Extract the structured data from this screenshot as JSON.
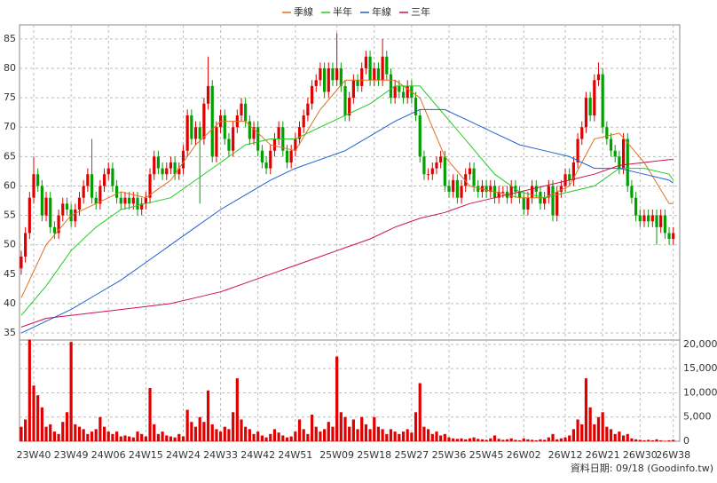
{
  "chart_data": {
    "type": "candlestick",
    "categories": [
      null,
      null,
      null,
      "23W40",
      null,
      null,
      null,
      null,
      null,
      null,
      null,
      null,
      "23W49",
      null,
      null,
      null,
      null,
      null,
      null,
      null,
      null,
      "24W06",
      null,
      null,
      null,
      null,
      null,
      null,
      null,
      null,
      "24W15",
      null,
      null,
      null,
      null,
      null,
      null,
      null,
      null,
      "24W24",
      null,
      null,
      null,
      null,
      null,
      null,
      null,
      null,
      "24W33",
      null,
      null,
      null,
      null,
      null,
      null,
      null,
      null,
      "24W42",
      null,
      null,
      null,
      null,
      null,
      null,
      null,
      null,
      "24W51",
      null,
      null,
      null,
      null,
      null,
      null,
      null,
      null,
      null,
      "25W09",
      null,
      null,
      null,
      null,
      null,
      null,
      null,
      null,
      "25W18",
      null,
      null,
      null,
      null,
      null,
      null,
      null,
      null,
      "25W27",
      null,
      null,
      null,
      null,
      null,
      null,
      null,
      null,
      "25W36",
      null,
      null,
      null,
      null,
      null,
      null,
      null,
      null,
      "25W45",
      null,
      null,
      null,
      null,
      null,
      null,
      null,
      null,
      "26W02",
      null,
      null,
      null,
      null,
      null,
      null,
      null,
      null,
      null,
      "26W12",
      null,
      null,
      null,
      null,
      null,
      null,
      null,
      null,
      "26W21",
      null,
      null,
      null,
      null,
      null,
      null,
      null,
      null,
      "26W30",
      null,
      null,
      null,
      null,
      null,
      null,
      null,
      "26W38"
    ],
    "open": [
      46,
      48,
      52,
      58,
      62,
      60,
      55,
      58,
      53,
      52,
      55,
      57,
      56,
      54,
      56,
      58,
      60,
      62,
      58,
      57,
      60,
      62,
      63,
      60,
      58,
      57,
      58,
      57,
      58,
      56,
      57,
      58,
      62,
      65,
      63,
      62,
      63,
      64,
      62,
      63,
      66,
      72,
      68,
      70,
      68,
      74,
      77,
      65,
      70,
      72,
      68,
      66,
      70,
      72,
      74,
      71,
      68,
      70,
      66,
      64,
      63,
      66,
      68,
      70,
      66,
      64,
      66,
      68,
      70,
      72,
      74,
      77,
      78,
      80,
      76,
      80,
      78,
      80,
      77,
      72,
      75,
      78,
      77,
      80,
      82,
      78,
      80,
      78,
      82,
      79,
      75,
      77,
      76,
      75,
      77,
      75,
      72,
      65,
      62,
      62,
      63,
      64,
      65,
      60,
      59,
      61,
      58,
      60,
      62,
      63,
      60,
      59,
      60,
      59,
      60,
      58,
      59,
      59,
      58,
      60,
      59,
      58,
      56,
      58,
      60,
      59,
      57,
      58,
      60,
      55,
      59,
      60,
      62,
      61,
      64,
      68,
      70,
      75,
      72,
      78,
      79,
      70,
      68,
      66,
      65,
      63,
      68,
      60,
      58,
      55,
      54,
      55,
      54,
      55,
      53,
      55,
      52,
      51
    ],
    "high": [
      49,
      53,
      59,
      65,
      63,
      61,
      59,
      59,
      54,
      56,
      58,
      58,
      57,
      57,
      59,
      61,
      63,
      68,
      59,
      61,
      63,
      64,
      64,
      61,
      59,
      59,
      59,
      59,
      59,
      58,
      59,
      63,
      66,
      66,
      64,
      64,
      65,
      65,
      64,
      67,
      73,
      73,
      71,
      71,
      75,
      82,
      78,
      71,
      73,
      73,
      69,
      71,
      73,
      75,
      75,
      72,
      71,
      71,
      67,
      65,
      67,
      69,
      71,
      71,
      67,
      67,
      69,
      71,
      73,
      75,
      78,
      79,
      81,
      81,
      81,
      81,
      86,
      81,
      78,
      76,
      79,
      79,
      81,
      83,
      83,
      81,
      81,
      85,
      83,
      80,
      78,
      78,
      77,
      78,
      78,
      76,
      73,
      66,
      63,
      64,
      65,
      66,
      66,
      61,
      62,
      62,
      61,
      63,
      64,
      64,
      61,
      61,
      61,
      61,
      61,
      60,
      60,
      60,
      61,
      61,
      60,
      59,
      59,
      61,
      61,
      60,
      59,
      61,
      61,
      60,
      61,
      63,
      63,
      65,
      69,
      71,
      76,
      76,
      79,
      81,
      80,
      71,
      69,
      67,
      66,
      69,
      69,
      61,
      59,
      56,
      56,
      56,
      56,
      56,
      56,
      56,
      53,
      53
    ],
    "low": [
      45,
      47,
      51,
      57,
      59,
      54,
      54,
      52,
      51,
      51,
      54,
      55,
      53,
      53,
      55,
      57,
      59,
      57,
      56,
      56,
      59,
      61,
      59,
      57,
      56,
      56,
      56,
      56,
      55,
      55,
      56,
      57,
      61,
      62,
      61,
      61,
      62,
      61,
      61,
      62,
      65,
      67,
      67,
      57,
      67,
      73,
      64,
      64,
      69,
      67,
      65,
      65,
      69,
      71,
      70,
      67,
      67,
      65,
      63,
      62,
      62,
      65,
      67,
      65,
      63,
      63,
      65,
      67,
      69,
      71,
      73,
      76,
      77,
      75,
      75,
      77,
      77,
      76,
      71,
      71,
      74,
      76,
      76,
      79,
      77,
      77,
      77,
      77,
      78,
      74,
      74,
      75,
      74,
      74,
      74,
      71,
      64,
      61,
      61,
      61,
      62,
      63,
      59,
      58,
      58,
      57,
      57,
      59,
      61,
      59,
      58,
      58,
      58,
      58,
      57,
      57,
      58,
      57,
      57,
      58,
      57,
      55,
      55,
      57,
      58,
      56,
      56,
      57,
      54,
      54,
      58,
      59,
      60,
      60,
      63,
      67,
      69,
      71,
      71,
      77,
      69,
      67,
      65,
      64,
      62,
      62,
      59,
      57,
      54,
      53,
      53,
      53,
      53,
      50,
      52,
      51,
      50,
      50
    ],
    "close": [
      48,
      52,
      58,
      62,
      60,
      55,
      58,
      53,
      52,
      55,
      57,
      56,
      54,
      56,
      58,
      60,
      62,
      58,
      57,
      60,
      62,
      63,
      60,
      58,
      57,
      58,
      57,
      58,
      56,
      57,
      58,
      62,
      65,
      63,
      62,
      63,
      64,
      62,
      63,
      66,
      72,
      68,
      70,
      68,
      74,
      77,
      65,
      70,
      72,
      68,
      66,
      70,
      72,
      74,
      71,
      68,
      70,
      66,
      64,
      63,
      66,
      68,
      70,
      66,
      64,
      66,
      68,
      70,
      72,
      74,
      77,
      78,
      80,
      76,
      80,
      78,
      80,
      77,
      72,
      75,
      78,
      77,
      80,
      82,
      78,
      80,
      78,
      82,
      79,
      75,
      77,
      76,
      75,
      77,
      75,
      72,
      65,
      62,
      62,
      63,
      64,
      65,
      60,
      59,
      61,
      58,
      60,
      62,
      63,
      60,
      59,
      60,
      59,
      60,
      58,
      59,
      59,
      58,
      60,
      59,
      58,
      56,
      58,
      60,
      59,
      57,
      58,
      60,
      55,
      59,
      60,
      62,
      61,
      64,
      68,
      70,
      75,
      72,
      78,
      79,
      70,
      68,
      66,
      65,
      63,
      68,
      60,
      58,
      55,
      54,
      55,
      54,
      55,
      53,
      55,
      52,
      51,
      52
    ],
    "volume": [
      3000,
      4500,
      21000,
      11500,
      9500,
      7000,
      3000,
      3500,
      2000,
      1500,
      4000,
      6000,
      20500,
      3500,
      3000,
      2500,
      1500,
      2000,
      2500,
      5000,
      3000,
      2000,
      1500,
      2000,
      1000,
      1200,
      1000,
      800,
      2000,
      1500,
      1000,
      11000,
      3500,
      1500,
      2000,
      1200,
      1000,
      800,
      1500,
      1000,
      6500,
      4000,
      3000,
      5000,
      4000,
      10500,
      3500,
      2500,
      2000,
      3000,
      2500,
      6000,
      13000,
      4500,
      3000,
      2500,
      1500,
      2000,
      1200,
      800,
      1500,
      2500,
      1800,
      1200,
      800,
      1000,
      2000,
      4500,
      2500,
      1500,
      5500,
      3000,
      2000,
      2500,
      4000,
      3000,
      17500,
      6000,
      5000,
      3000,
      4500,
      2500,
      5000,
      3500,
      2500,
      5000,
      3000,
      2500,
      1500,
      2500,
      2000,
      1500,
      2000,
      2500,
      1800,
      6000,
      12000,
      3000,
      2500,
      1500,
      2000,
      1200,
      1500,
      800,
      600,
      500,
      600,
      400,
      600,
      800,
      500,
      400,
      300,
      600,
      1200,
      500,
      300,
      400,
      600,
      300,
      200,
      600,
      400,
      300,
      200,
      400,
      300,
      800,
      1500,
      400,
      600,
      800,
      1200,
      2500,
      4500,
      3500,
      13000,
      7000,
      3500,
      5000,
      6000,
      3000,
      2500,
      1500,
      2000,
      1200,
      1500,
      600,
      400,
      300,
      200,
      300,
      200,
      400,
      200,
      100,
      200,
      300
    ],
    "up_color": "#e00000",
    "down_color": "#00a000",
    "volume_color": "#e00000",
    "lines": [
      {
        "name": "季線",
        "color": "#e07020",
        "x": [
          0,
          6,
          12,
          18,
          24,
          30,
          36,
          42,
          48,
          54,
          60,
          66,
          72,
          78,
          84,
          90,
          96,
          102,
          108,
          114,
          120,
          126,
          132,
          138,
          144,
          150,
          156,
          157
        ],
        "values": [
          41,
          50,
          55,
          57,
          59,
          58,
          61,
          67,
          71,
          71,
          67,
          66,
          73,
          78,
          78,
          78,
          75,
          65,
          60,
          59,
          58,
          58,
          60,
          68,
          69,
          64,
          57,
          57
        ]
      },
      {
        "name": "半年",
        "color": "#22cc22",
        "x": [
          0,
          6,
          12,
          18,
          24,
          30,
          36,
          42,
          48,
          54,
          60,
          66,
          72,
          78,
          84,
          90,
          96,
          102,
          108,
          114,
          120,
          126,
          132,
          138,
          144,
          150,
          156,
          157
        ],
        "values": [
          38,
          43,
          49,
          53,
          56,
          57,
          58,
          61,
          64,
          67,
          68,
          68,
          70,
          72,
          74,
          77,
          77,
          72,
          67,
          62,
          59,
          58,
          59,
          60,
          63,
          63,
          62,
          61
        ]
      },
      {
        "name": "年線",
        "color": "#2060d0",
        "x": [
          0,
          6,
          12,
          18,
          24,
          30,
          36,
          42,
          48,
          54,
          60,
          66,
          72,
          78,
          84,
          90,
          96,
          102,
          108,
          114,
          120,
          126,
          132,
          138,
          144,
          150,
          156,
          157
        ],
        "values": [
          35,
          37,
          39,
          41.5,
          44,
          47,
          50,
          53,
          56,
          58.5,
          61,
          63,
          64.5,
          66,
          68.5,
          71,
          73,
          73,
          71,
          69,
          67,
          66,
          65,
          63,
          63,
          62,
          61,
          60.5
        ]
      },
      {
        "name": "三年",
        "color": "#cc1050",
        "x": [
          0,
          6,
          12,
          18,
          24,
          30,
          36,
          42,
          48,
          54,
          60,
          66,
          72,
          78,
          84,
          90,
          96,
          102,
          108,
          114,
          120,
          126,
          132,
          138,
          144,
          150,
          156,
          157
        ],
        "values": [
          36,
          37.5,
          38,
          38.5,
          39,
          39.5,
          40,
          41,
          42,
          43.5,
          45,
          46.5,
          48,
          49.5,
          51,
          53,
          54.5,
          55.5,
          57,
          58,
          59,
          60,
          61,
          62,
          63.5,
          64,
          64.5,
          64.5
        ]
      }
    ],
    "ylim": [
      33.8,
      87.4
    ],
    "yticks": [
      35,
      40,
      45,
      50,
      55,
      60,
      65,
      70,
      75,
      80,
      85
    ],
    "vlim": [
      0,
      20900
    ],
    "vticks": [
      0,
      {
        "value": 5000,
        "label": "5,000"
      },
      {
        "value": 10000,
        "label": "10,000"
      },
      {
        "value": 15000,
        "label": "15,000"
      },
      {
        "value": 20000,
        "label": "20,000"
      }
    ],
    "grid": true,
    "legend": "top",
    "source": "資料日期: 09/18  (Goodinfo.tw)"
  }
}
